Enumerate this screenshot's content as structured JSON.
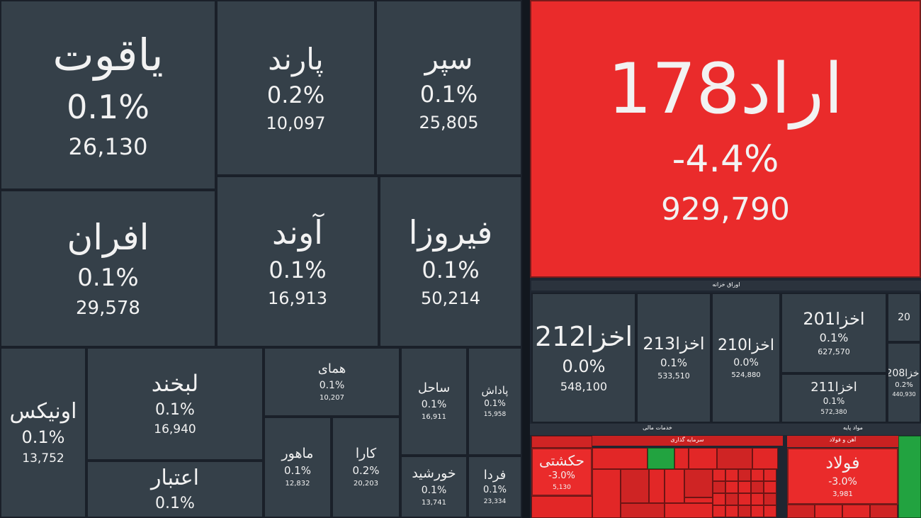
{
  "chart_data": {
    "type": "heatmap",
    "subtype": "treemap",
    "colors": {
      "positive_neutral": "#354049",
      "negative": "#ea2b2b",
      "positive": "#1f9f3b"
    },
    "groups": [
      {
        "name": "اوراق خزانه"
      },
      {
        "name": "خدمات مالی"
      },
      {
        "name": "سرمایه گذاری"
      },
      {
        "name": "مواد پایه"
      },
      {
        "name": "آهن و فولاد"
      }
    ],
    "tiles": [
      {
        "symbol": "یاقوت",
        "change": "0.1%",
        "value": "26,130",
        "color": "dark"
      },
      {
        "symbol": "پارند",
        "change": "0.2%",
        "value": "10,097",
        "color": "dark"
      },
      {
        "symbol": "سپر",
        "change": "0.1%",
        "value": "25,805",
        "color": "dark"
      },
      {
        "symbol": "اراد178",
        "change": "-4.4%",
        "value": "929,790",
        "color": "red"
      },
      {
        "symbol": "افران",
        "change": "0.1%",
        "value": "29,578",
        "color": "dark"
      },
      {
        "symbol": "آوند",
        "change": "0.1%",
        "value": "16,913",
        "color": "dark"
      },
      {
        "symbol": "فیروزا",
        "change": "0.1%",
        "value": "50,214",
        "color": "dark"
      },
      {
        "symbol": "اونیکس",
        "change": "0.1%",
        "value": "13,752",
        "color": "dark"
      },
      {
        "symbol": "لبخند",
        "change": "0.1%",
        "value": "16,940",
        "color": "dark"
      },
      {
        "symbol": "همای",
        "change": "0.1%",
        "value": "10,207",
        "color": "dark"
      },
      {
        "symbol": "ساحل",
        "change": "0.1%",
        "value": "16,911",
        "color": "dark"
      },
      {
        "symbol": "پاداش",
        "change": "0.1%",
        "value": "15,958",
        "color": "dark"
      },
      {
        "symbol": "اعتبار",
        "change": "0.1%",
        "value": "",
        "color": "dark"
      },
      {
        "symbol": "ماهور",
        "change": "0.1%",
        "value": "12,832",
        "color": "dark"
      },
      {
        "symbol": "کارا",
        "change": "0.2%",
        "value": "20,203",
        "color": "dark"
      },
      {
        "symbol": "خورشید",
        "change": "0.1%",
        "value": "13,741",
        "color": "dark"
      },
      {
        "symbol": "فردا",
        "change": "0.1%",
        "value": "23,334",
        "color": "dark"
      },
      {
        "symbol": "اخزا212",
        "change": "0.0%",
        "value": "548,100",
        "color": "dark"
      },
      {
        "symbol": "اخزا213",
        "change": "0.1%",
        "value": "533,510",
        "color": "dark"
      },
      {
        "symbol": "اخزا210",
        "change": "0.0%",
        "value": "524,880",
        "color": "dark"
      },
      {
        "symbol": "اخزا201",
        "change": "0.1%",
        "value": "627,570",
        "color": "dark"
      },
      {
        "symbol": "اخزا211",
        "change": "0.1%",
        "value": "572,380",
        "color": "dark"
      },
      {
        "symbol": "اخزا208",
        "change": "0.2%",
        "value": "440,930",
        "color": "dark"
      },
      {
        "symbol": "20",
        "change": "",
        "value": "",
        "color": "dark"
      },
      {
        "symbol": "حکشتی",
        "change": "-3.0%",
        "value": "5,130",
        "color": "red"
      },
      {
        "symbol": "فولاد",
        "change": "-3.0%",
        "value": "3,981",
        "color": "red"
      }
    ]
  }
}
